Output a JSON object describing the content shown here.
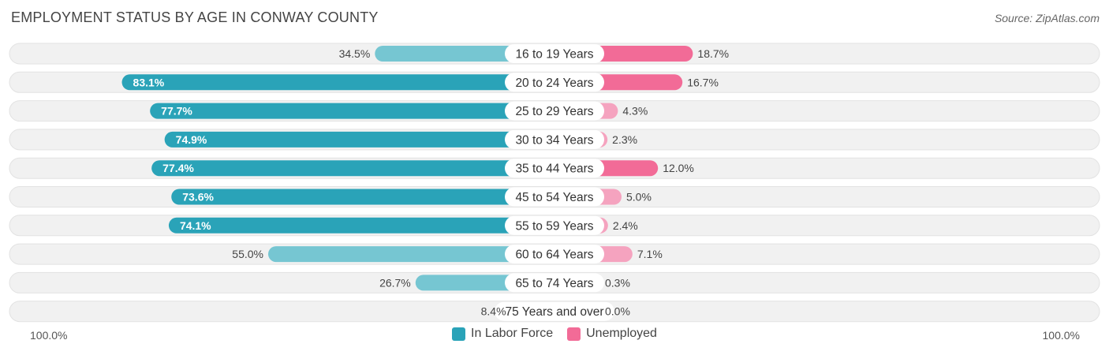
{
  "title": "EMPLOYMENT STATUS BY AGE IN CONWAY COUNTY",
  "source": "Source: ZipAtlas.com",
  "colors": {
    "labor_dark": "#2aa3b8",
    "labor_light": "#76c6d2",
    "unemp_dark": "#f26b97",
    "unemp_light": "#f5a3bf",
    "row_bg": "#f1f1f1"
  },
  "chart_data": {
    "type": "bar",
    "orientation": "horizontal-diverging",
    "title": "EMPLOYMENT STATUS BY AGE IN CONWAY COUNTY",
    "categories": [
      "16 to 19 Years",
      "20 to 24 Years",
      "25 to 29 Years",
      "30 to 34 Years",
      "35 to 44 Years",
      "45 to 54 Years",
      "55 to 59 Years",
      "60 to 64 Years",
      "65 to 74 Years",
      "75 Years and over"
    ],
    "series": [
      {
        "name": "In Labor Force",
        "values": [
          34.5,
          83.1,
          77.7,
          74.9,
          77.4,
          73.6,
          74.1,
          55.0,
          26.7,
          8.4
        ],
        "labels": [
          "34.5%",
          "83.1%",
          "77.7%",
          "74.9%",
          "77.4%",
          "73.6%",
          "74.1%",
          "55.0%",
          "26.7%",
          "8.4%"
        ]
      },
      {
        "name": "Unemployed",
        "values": [
          18.7,
          16.7,
          4.3,
          2.3,
          12.0,
          5.0,
          2.4,
          7.1,
          0.3,
          0.0
        ],
        "labels": [
          "18.7%",
          "16.7%",
          "4.3%",
          "2.3%",
          "12.0%",
          "5.0%",
          "2.4%",
          "7.1%",
          "0.3%",
          "0.0%"
        ]
      }
    ],
    "axis_min_label": "100.0%",
    "axis_max_label": "100.0%",
    "xlim": [
      -100,
      100
    ],
    "legend_position": "bottom-center"
  }
}
